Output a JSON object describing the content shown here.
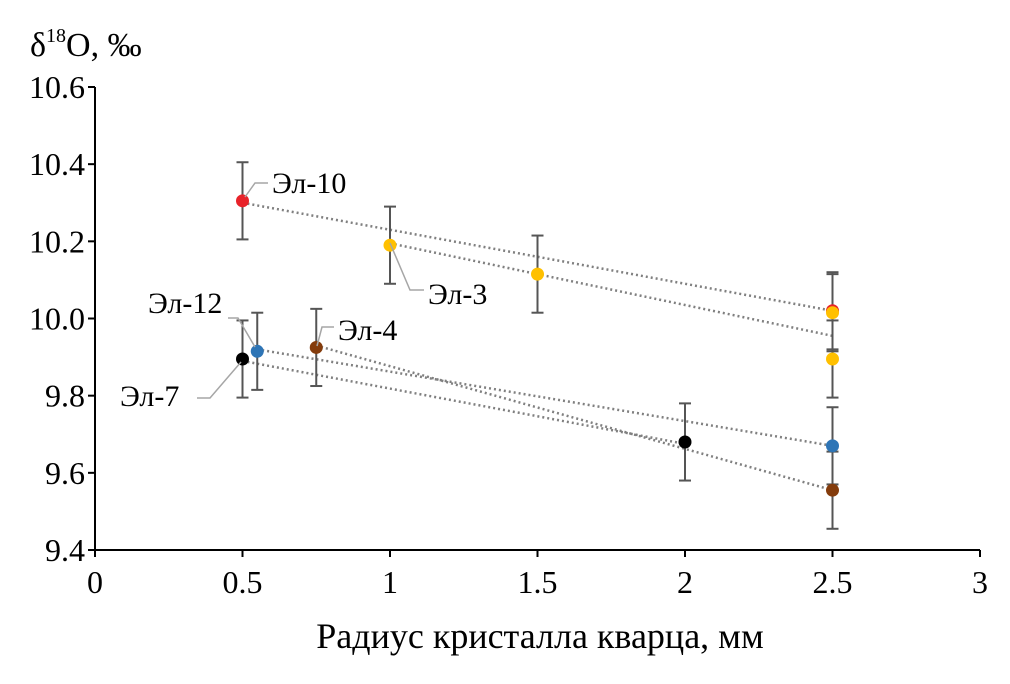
{
  "chart_data": {
    "type": "scatter",
    "ylabel_main": "δ",
    "ylabel_sup": "18",
    "ylabel_rest": "O, ‰",
    "xlabel": "Радиус кристалла кварца, мм",
    "xlim": [
      0,
      3
    ],
    "ylim": [
      9.4,
      10.6
    ],
    "xticks": [
      "0",
      "0.5",
      "1",
      "1.5",
      "2",
      "2.5",
      "3"
    ],
    "yticks": [
      "9.4",
      "9.6",
      "9.8",
      "10.0",
      "10.2",
      "10.4",
      "10.6"
    ],
    "error": 0.1,
    "series": [
      {
        "name": "Эл-10",
        "color": "#e8232a",
        "points": [
          [
            0.5,
            10.305
          ],
          [
            2.5,
            10.02
          ]
        ],
        "trend": [
          [
            0.5,
            10.3
          ],
          [
            2.5,
            10.02
          ]
        ]
      },
      {
        "name": "Эл-3",
        "color": "#ffc000",
        "points": [
          [
            1.0,
            10.19
          ],
          [
            1.5,
            10.115
          ],
          [
            2.5,
            10.015
          ],
          [
            2.5,
            9.895
          ]
        ],
        "trend": [
          [
            1.0,
            10.195
          ],
          [
            2.5,
            9.955
          ]
        ]
      },
      {
        "name": "Эл-12",
        "color": "#2e75b6",
        "points": [
          [
            0.55,
            9.915
          ],
          [
            2.5,
            9.67
          ]
        ],
        "trend": [
          [
            0.55,
            9.92
          ],
          [
            2.5,
            9.67
          ]
        ]
      },
      {
        "name": "Эл-4",
        "color": "#843c0c",
        "points": [
          [
            0.75,
            9.925
          ],
          [
            2.5,
            9.555
          ]
        ],
        "trend": [
          [
            0.75,
            9.93
          ],
          [
            2.5,
            9.555
          ]
        ]
      },
      {
        "name": "Эл-7",
        "color": "#000000",
        "points": [
          [
            0.5,
            9.895
          ],
          [
            2.0,
            9.68
          ]
        ],
        "trend": [
          [
            0.5,
            9.89
          ],
          [
            2.0,
            9.675
          ]
        ]
      }
    ]
  }
}
